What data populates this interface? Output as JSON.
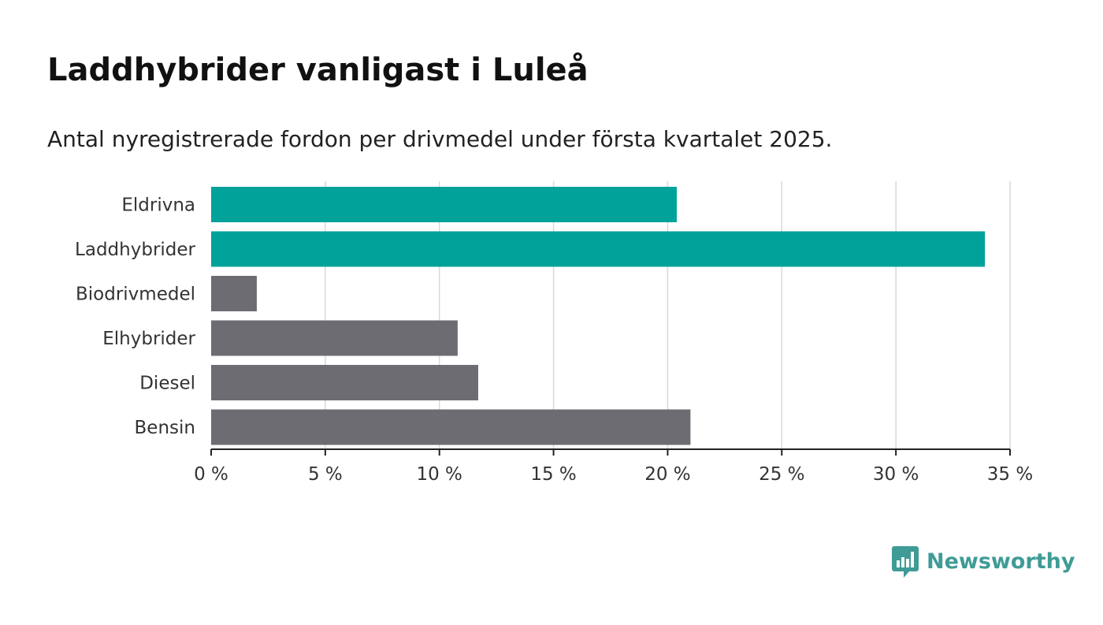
{
  "chart_data": {
    "type": "bar",
    "orientation": "horizontal",
    "title": "Laddhybrider vanligast i Luleå",
    "subtitle": "Antal nyregistrerade fordon per drivmedel under första kvartalet 2025.",
    "categories": [
      "Eldrivna",
      "Laddhybrider",
      "Biodrivmedel",
      "Elhybrider",
      "Diesel",
      "Bensin"
    ],
    "values": [
      20.4,
      33.9,
      2.0,
      10.8,
      11.7,
      21.0
    ],
    "colors": [
      "#00a29a",
      "#00a29a",
      "#6d6c73",
      "#6d6c73",
      "#6d6c73",
      "#6d6c73"
    ],
    "xlim": [
      0,
      35
    ],
    "xticks": [
      0,
      5,
      10,
      15,
      20,
      25,
      30,
      35
    ],
    "xtick_labels": [
      "0 %",
      "5 %",
      "10 %",
      "15 %",
      "20 %",
      "25 %",
      "30 %",
      "35 %"
    ],
    "grid": true,
    "legend": "none"
  },
  "branding": {
    "logo_text": "Newsworthy",
    "logo_icon": "bar-chart-speech-bubble-icon",
    "logo_color": "#3f9b96"
  }
}
